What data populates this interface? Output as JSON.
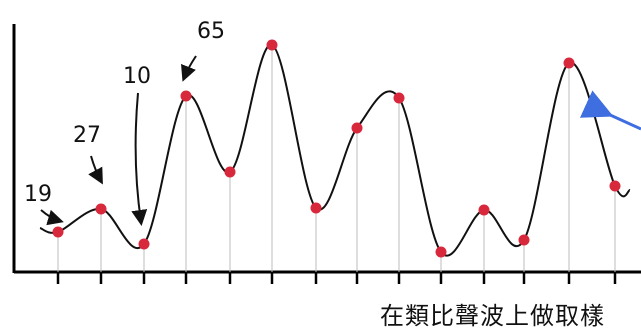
{
  "annotations": [
    {
      "label": "19",
      "sample_index": 0
    },
    {
      "label": "27",
      "sample_index": 1
    },
    {
      "label": "10",
      "sample_index": 2
    },
    {
      "label": "65",
      "sample_index": 3
    }
  ],
  "caption": "在類比聲波上做取樣",
  "colors": {
    "wave": "#111111",
    "sample_point": "#d8283c",
    "stem": "#bcbcbc",
    "axis": "#000000",
    "annotation_arrow": "#111111",
    "pointer_arrow": "#3f6ee0"
  }
}
